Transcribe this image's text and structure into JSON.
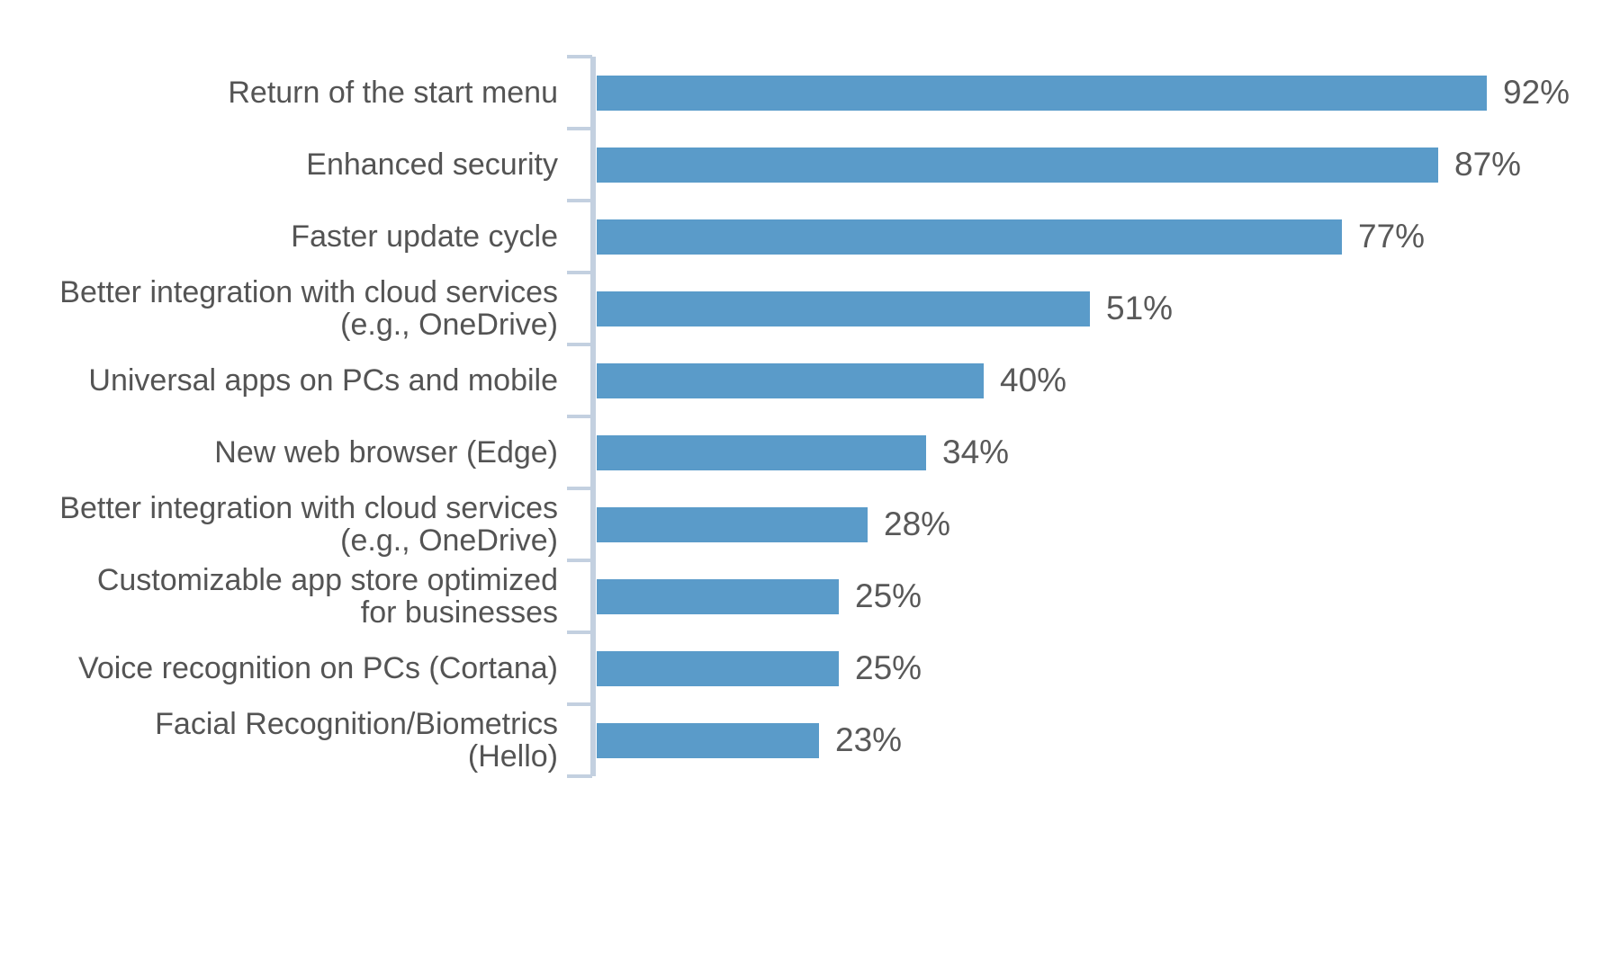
{
  "chart_data": {
    "type": "bar",
    "orientation": "horizontal",
    "categories": [
      [
        "Return of the start menu"
      ],
      [
        "Enhanced security"
      ],
      [
        "Faster update cycle"
      ],
      [
        "Better integration with cloud services",
        "(e.g., OneDrive)"
      ],
      [
        "Universal apps on PCs and mobile"
      ],
      [
        "New web browser (Edge)"
      ],
      [
        "Better integration with cloud services",
        "(e.g., OneDrive)"
      ],
      [
        "Customizable app store optimized",
        "for businesses"
      ],
      [
        "Voice recognition on PCs (Cortana)"
      ],
      [
        "Facial Recognition/Biometrics",
        "(Hello)"
      ]
    ],
    "values": [
      92,
      87,
      77,
      51,
      40,
      34,
      28,
      25,
      25,
      23
    ],
    "value_labels": [
      "92%",
      "87%",
      "77%",
      "51%",
      "40%",
      "34%",
      "28%",
      "25%",
      "25%",
      "23%"
    ],
    "value_suffix": "%",
    "xlim": [
      0,
      100
    ],
    "grid": false,
    "legend": false,
    "bar_color": "#5A9BC9",
    "axis_color": "#C3D0E0",
    "label_text_color": "#545454",
    "value_text_color": "#595959"
  }
}
